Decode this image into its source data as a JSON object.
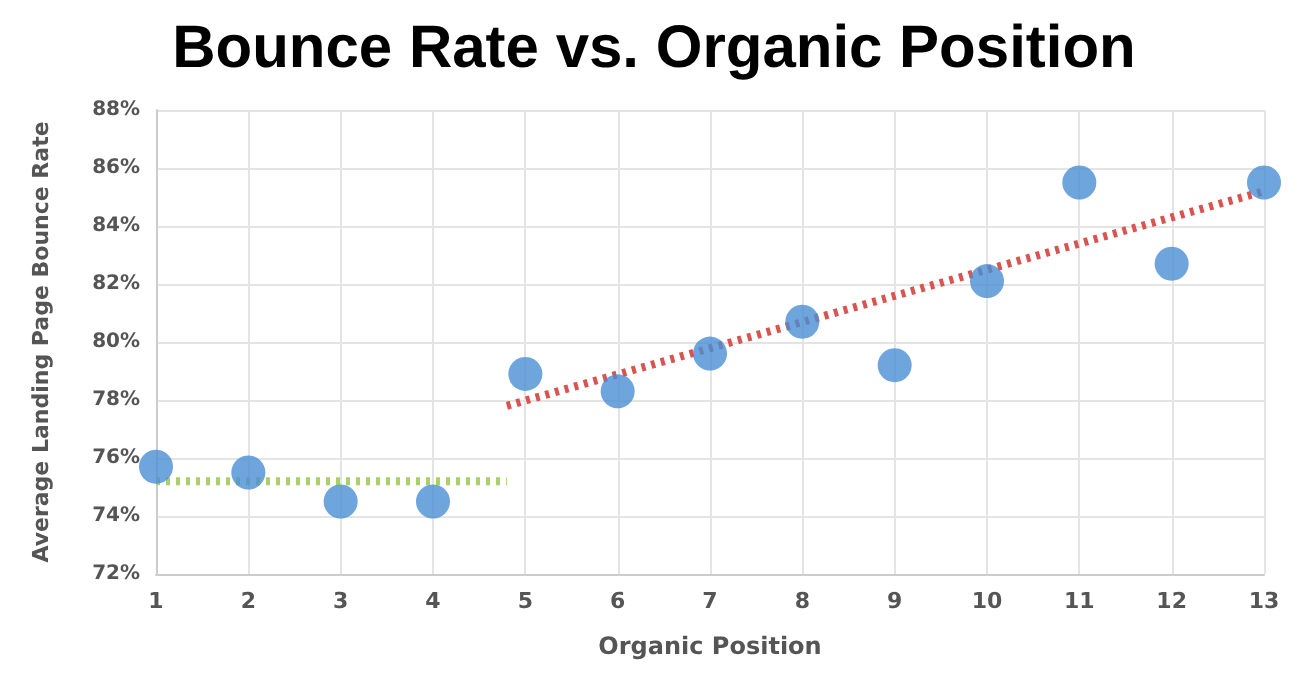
{
  "chart_data": {
    "type": "scatter",
    "title": "Bounce Rate vs. Organic Position",
    "xlabel": "Organic Position",
    "ylabel": "Average Landing Page Bounce Rate",
    "x": [
      1,
      2,
      3,
      4,
      5,
      6,
      7,
      8,
      9,
      10,
      11,
      12,
      13
    ],
    "series": [
      {
        "color": "#4a8fd4",
        "values": [
          75.7,
          75.5,
          74.5,
          74.5,
          78.9,
          78.3,
          79.6,
          80.7,
          79.2,
          82.1,
          85.5,
          82.7,
          85.5
        ]
      },
      {
        "type": "line",
        "color": "#a9d06a",
        "x": [
          1,
          4.8
        ],
        "values": [
          75.2,
          75.2
        ],
        "line_style": "dotted",
        "marker": "none"
      },
      {
        "type": "line",
        "color": "#d9534f",
        "x": [
          4.8,
          13
        ],
        "values": [
          77.8,
          85.2
        ],
        "line_style": "dotted",
        "marker": "none"
      }
    ],
    "marker": "circle",
    "grid": true,
    "xlim": [
      1,
      13
    ],
    "xticks": [
      1,
      2,
      3,
      4,
      5,
      6,
      7,
      8,
      9,
      10,
      11,
      12,
      13
    ],
    "ylim": [
      72,
      88
    ],
    "yticks": [
      {
        "value": 72,
        "label": "72%"
      },
      {
        "value": 74,
        "label": "74%"
      },
      {
        "value": 76,
        "label": "76%"
      },
      {
        "value": 78,
        "label": "78%"
      },
      {
        "value": 80,
        "label": "80%"
      },
      {
        "value": 82,
        "label": "82%"
      },
      {
        "value": 84,
        "label": "84%"
      },
      {
        "value": 86,
        "label": "86%"
      },
      {
        "value": 88,
        "label": "88%"
      }
    ]
  }
}
